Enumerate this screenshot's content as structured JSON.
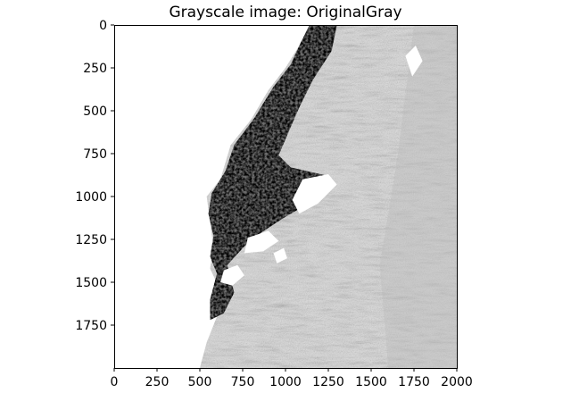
{
  "chart_data": {
    "type": "heatmap",
    "title": "Grayscale image: OriginalGray",
    "xlabel": "",
    "ylabel": "",
    "xlim": [
      0,
      2000
    ],
    "ylim": [
      2000,
      0
    ],
    "y_inverted": true,
    "x_ticks": [
      "0",
      "250",
      "500",
      "750",
      "1000",
      "1250",
      "1500",
      "1750",
      "2000"
    ],
    "y_ticks": [
      "0",
      "250",
      "500",
      "750",
      "1000",
      "1250",
      "1500",
      "1750"
    ],
    "colormap": "gray",
    "grid": false,
    "legend": "none",
    "content": "grayscale micrograph of stained tissue section"
  },
  "colors": {
    "background": "#ffffff",
    "axes": "#000000",
    "tissue_dark": "#2a2a2a",
    "tissue_light": "#d9d9d9"
  }
}
